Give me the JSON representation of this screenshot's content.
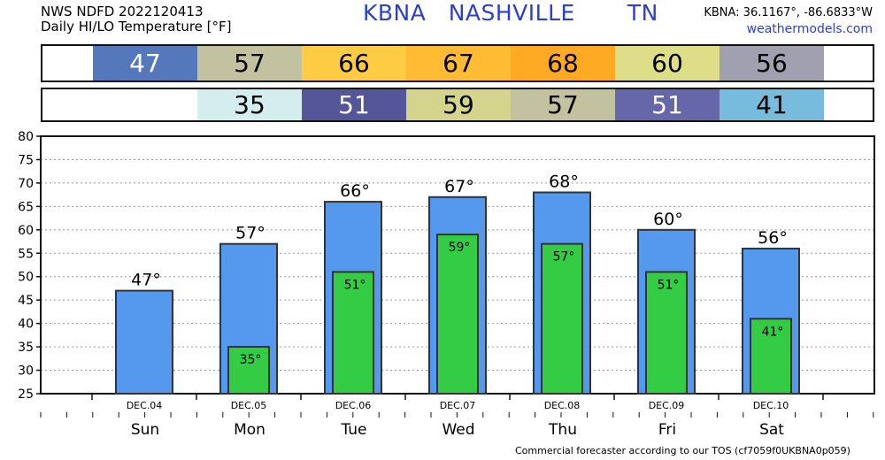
{
  "header": {
    "line1": "NWS NDFD 2022120413",
    "line2": "Daily HI/LO Temperature [°F]",
    "station": "KBNA   NASHVILLE       TN",
    "coords": "KBNA: 36.1167°, -86.6833°W",
    "site": "weathermodels.com"
  },
  "footer": "Commercial forecaster according to our TOS (cf7059f0UKBNA0p059)",
  "colors": {
    "hi_bar": "#5599ee",
    "lo_bar": "#33cc44",
    "hi_cells": [
      "#5577bb",
      "#c2c2a0",
      "#ffcc44",
      "#ffbb33",
      "#ffaa22",
      "#dede88",
      "#a0a0b0"
    ],
    "lo_cells": [
      "#d4eef0",
      "#555599",
      "#d4d48c",
      "#c2c2a0",
      "#6666aa",
      "#77bbdd"
    ]
  },
  "chart_data": {
    "type": "bar",
    "categories": [
      "Sun",
      "Mon",
      "Tue",
      "Wed",
      "Thu",
      "Fri",
      "Sat"
    ],
    "dates": [
      "DEC.04",
      "DEC.05",
      "DEC.06",
      "DEC.07",
      "DEC.08",
      "DEC.09",
      "DEC.10"
    ],
    "series": [
      {
        "values": [
          47,
          57,
          66,
          67,
          68,
          60,
          56
        ]
      },
      {
        "values": [
          null,
          35,
          51,
          59,
          57,
          51,
          41
        ]
      }
    ],
    "degree_symbol": "°",
    "ylim": [
      25,
      80
    ],
    "yticks": [
      25,
      30,
      35,
      40,
      45,
      50,
      55,
      60,
      65,
      70,
      75,
      80
    ],
    "grid": true
  }
}
